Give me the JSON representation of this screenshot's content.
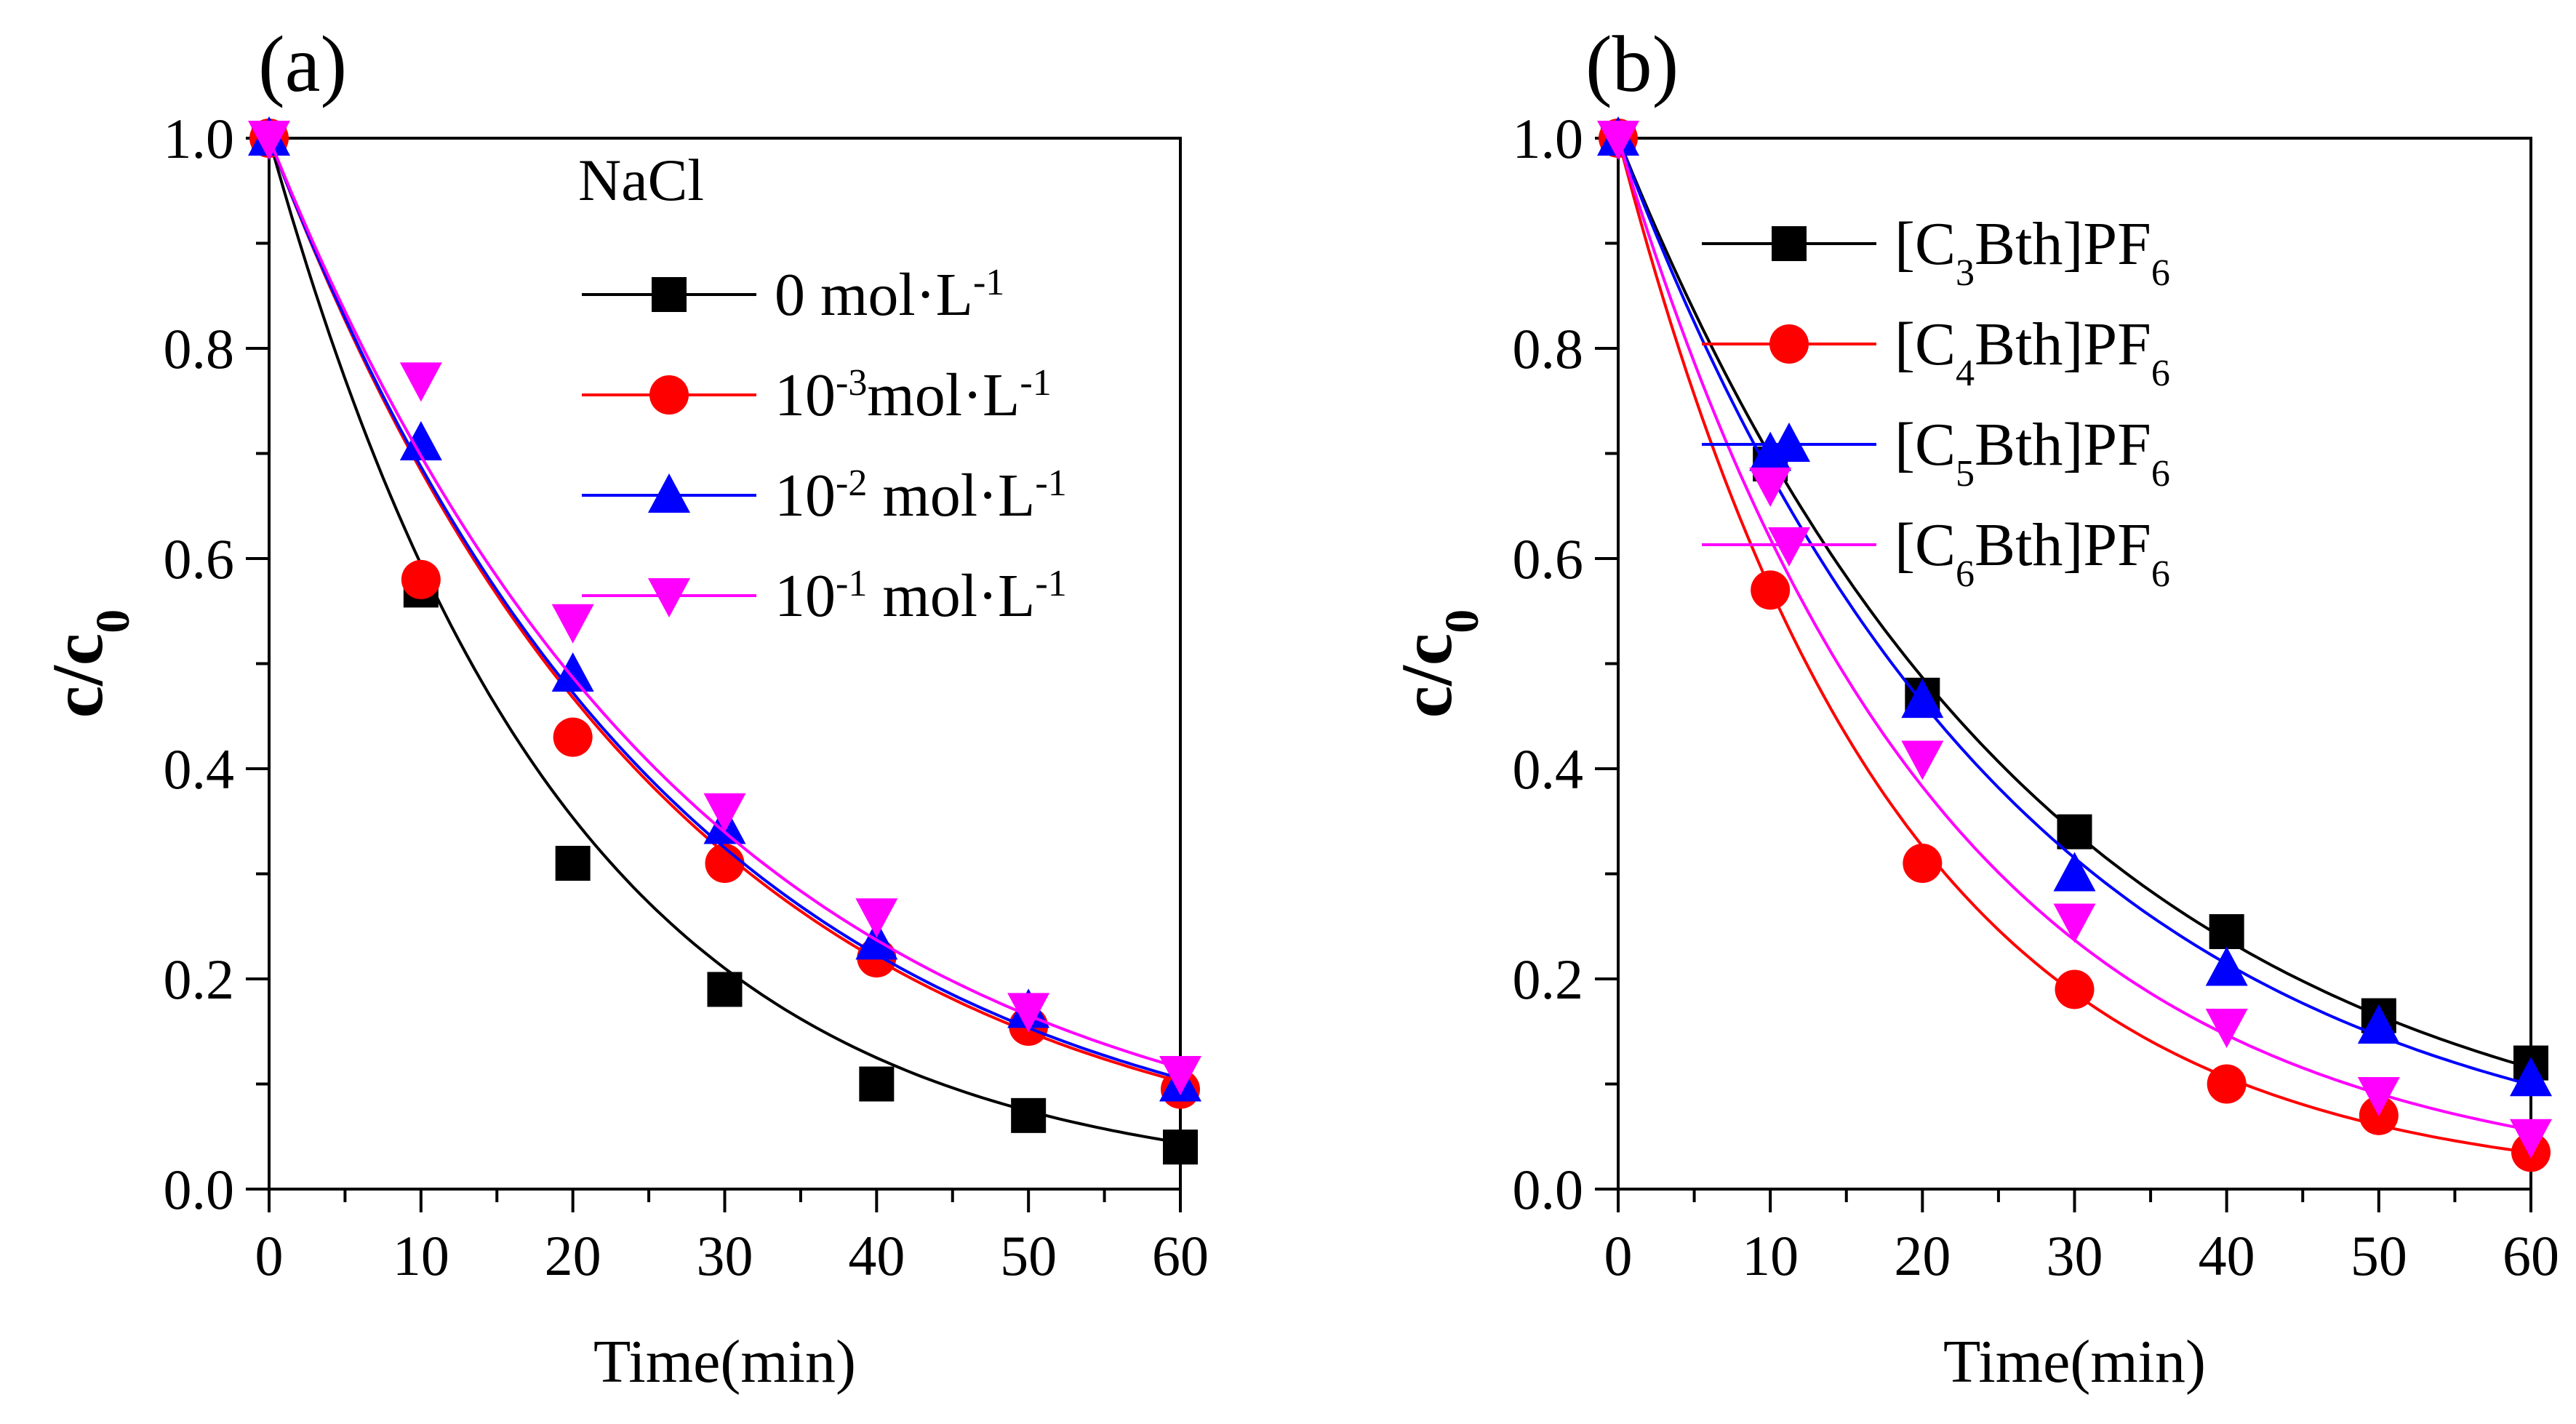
{
  "chart_data": [
    {
      "panel_label": "(a)",
      "type": "line",
      "xlabel": "Time(min)",
      "ylabel": {
        "base": "c/c",
        "sub": "0"
      },
      "xlim": [
        0,
        60
      ],
      "ylim": [
        0,
        1.0
      ],
      "xticks": [
        "0",
        "10",
        "20",
        "30",
        "40",
        "50",
        "60"
      ],
      "yticks": [
        "0.0",
        "0.2",
        "0.4",
        "0.6",
        "0.8",
        "1.0"
      ],
      "x": [
        0,
        10,
        20,
        30,
        40,
        50,
        60
      ],
      "legend_title": "NaCl",
      "legend_position": "top-right",
      "series": [
        {
          "name": "0  mol·L-1",
          "label_parts": [
            {
              "t": "0  mol·L"
            },
            {
              "t": "-1",
              "s": "sup"
            }
          ],
          "color": "#000000",
          "marker": "square",
          "values": [
            1.0,
            0.57,
            0.31,
            0.19,
            0.1,
            0.07,
            0.04
          ],
          "fit_k": 0.052,
          "fit_c": 0.0,
          "fit_a": 1.0
        },
        {
          "name": "10-3mol·L-1",
          "label_parts": [
            {
              "t": "10"
            },
            {
              "t": "-3",
              "s": "sup"
            },
            {
              "t": "mol·L"
            },
            {
              "t": "-1",
              "s": "sup"
            }
          ],
          "color": "#ff0000",
          "marker": "circle",
          "values": [
            1.0,
            0.58,
            0.43,
            0.31,
            0.22,
            0.155,
            0.095
          ],
          "fit_k": 0.038,
          "fit_c": 0.0,
          "fit_a": 1.0
        },
        {
          "name": "10-2 mol·L-1",
          "label_parts": [
            {
              "t": "10"
            },
            {
              "t": "-2",
              "s": "sup"
            },
            {
              "t": " mol·L"
            },
            {
              "t": "-1",
              "s": "sup"
            }
          ],
          "color": "#0000ff",
          "marker": "triangle-up",
          "values": [
            1.0,
            0.71,
            0.49,
            0.345,
            0.235,
            0.17,
            0.1
          ],
          "fit_k": 0.0375,
          "fit_c": 0.0,
          "fit_a": 1.0
        },
        {
          "name": "10-1 mol·L-1",
          "label_parts": [
            {
              "t": "10"
            },
            {
              "t": "-1",
              "s": "sup"
            },
            {
              "t": " mol·L"
            },
            {
              "t": "-1",
              "s": "sup"
            }
          ],
          "color": "#ff00ff",
          "marker": "triangle-down",
          "values": [
            1.0,
            0.77,
            0.54,
            0.36,
            0.26,
            0.17,
            0.11
          ],
          "fit_k": 0.036,
          "fit_c": 0.0,
          "fit_a": 1.0
        }
      ]
    },
    {
      "panel_label": "(b)",
      "type": "line",
      "xlabel": "Time(min)",
      "ylabel": {
        "base": "c/c",
        "sub": "0"
      },
      "xlim": [
        0,
        60
      ],
      "ylim": [
        0,
        1.0
      ],
      "xticks": [
        "0",
        "10",
        "20",
        "30",
        "40",
        "50",
        "60"
      ],
      "yticks": [
        "0.0",
        "0.2",
        "0.4",
        "0.6",
        "0.8",
        "1.0"
      ],
      "x": [
        0,
        10,
        20,
        30,
        40,
        50,
        60
      ],
      "legend_title": "",
      "legend_position": "top-right",
      "series": [
        {
          "name": "[C3Bth]PF6",
          "label_parts": [
            {
              "t": "[C"
            },
            {
              "t": "3",
              "s": "sub"
            },
            {
              "t": "Bth]PF"
            },
            {
              "t": "6",
              "s": "sub"
            }
          ],
          "color": "#000000",
          "marker": "square",
          "values": [
            1.0,
            0.69,
            0.47,
            0.34,
            0.245,
            0.165,
            0.12
          ],
          "fit_k": 0.036,
          "fit_c": 0.0,
          "fit_a": 1.0
        },
        {
          "name": "[C4Bth]PF6",
          "label_parts": [
            {
              "t": "[C"
            },
            {
              "t": "4",
              "s": "sub"
            },
            {
              "t": "Bth]PF"
            },
            {
              "t": "6",
              "s": "sub"
            }
          ],
          "color": "#ff0000",
          "marker": "circle",
          "values": [
            1.0,
            0.57,
            0.31,
            0.19,
            0.1,
            0.07,
            0.035
          ],
          "fit_k": 0.056,
          "fit_c": 0.0,
          "fit_a": 1.0
        },
        {
          "name": "[C5Bth]PF6",
          "label_parts": [
            {
              "t": "[C"
            },
            {
              "t": "5",
              "s": "sub"
            },
            {
              "t": "Bth]PF"
            },
            {
              "t": "6",
              "s": "sub"
            }
          ],
          "color": "#0000ff",
          "marker": "triangle-up",
          "values": [
            1.0,
            0.7,
            0.465,
            0.3,
            0.21,
            0.155,
            0.105
          ],
          "fit_k": 0.0385,
          "fit_c": 0.0,
          "fit_a": 1.0
        },
        {
          "name": "[C6Bth]PF6",
          "label_parts": [
            {
              "t": "[C"
            },
            {
              "t": "6",
              "s": "sub"
            },
            {
              "t": "Bth]PF"
            },
            {
              "t": "6",
              "s": "sub"
            }
          ],
          "color": "#ff00ff",
          "marker": "triangle-down",
          "values": [
            1.0,
            0.67,
            0.41,
            0.255,
            0.155,
            0.09,
            0.05
          ],
          "fit_k": 0.048,
          "fit_c": 0.0,
          "fit_a": 1.0
        }
      ]
    }
  ]
}
